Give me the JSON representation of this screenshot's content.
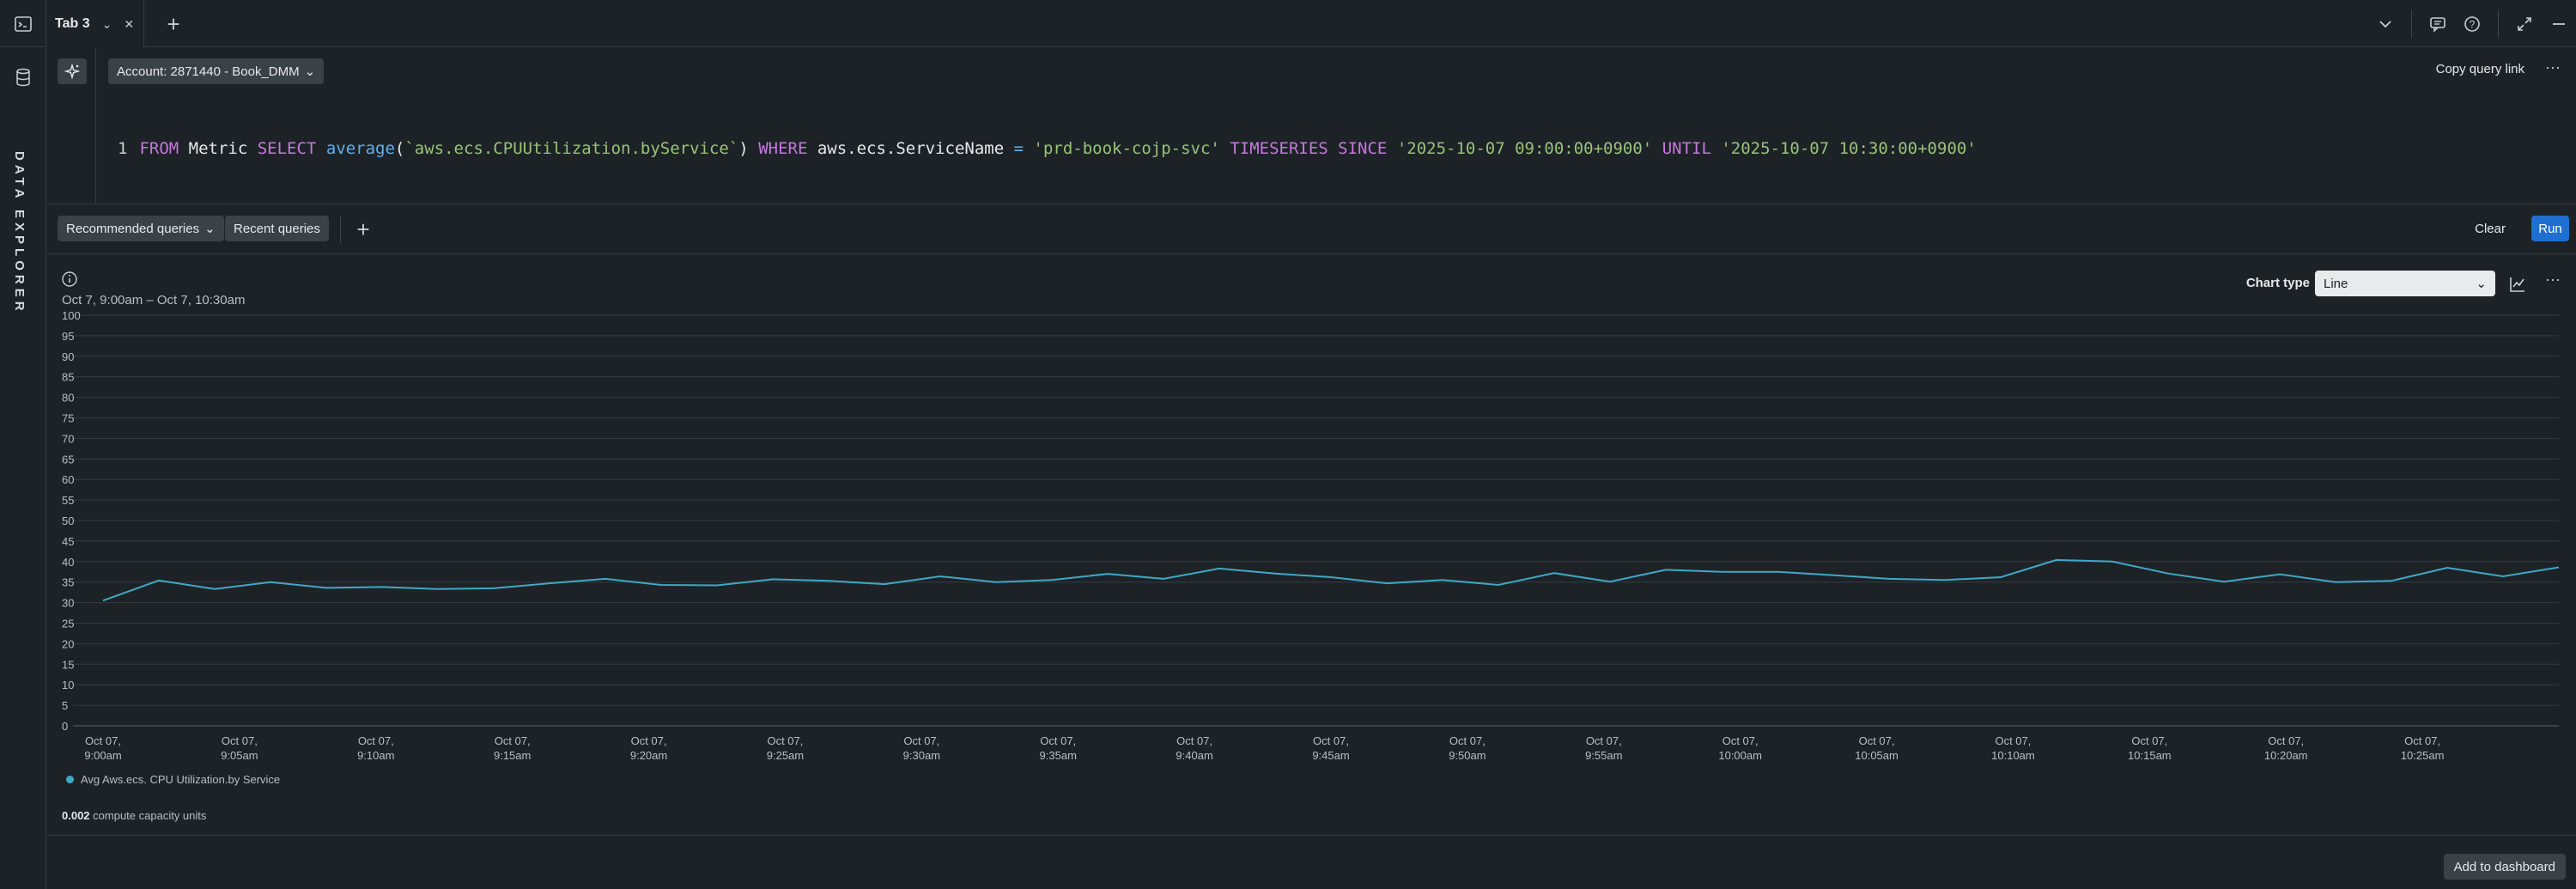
{
  "tabs": [
    {
      "label": "Tab 3"
    }
  ],
  "rail": {
    "label": "DATA EXPLORER"
  },
  "editor": {
    "account": "Account: 2871440 - Book_DMM",
    "copy_link": "Copy query link",
    "line_number": "1",
    "query_tokens": [
      {
        "t": "FROM",
        "c": "kw"
      },
      {
        "t": " Metric ",
        "c": ""
      },
      {
        "t": "SELECT",
        "c": "kw"
      },
      {
        "t": " ",
        "c": ""
      },
      {
        "t": "average",
        "c": "fn"
      },
      {
        "t": "(",
        "c": ""
      },
      {
        "t": "`aws.ecs.CPUUtilization.byService`",
        "c": "str"
      },
      {
        "t": ") ",
        "c": ""
      },
      {
        "t": "WHERE",
        "c": "kw"
      },
      {
        "t": " aws.ecs.ServiceName ",
        "c": ""
      },
      {
        "t": "=",
        "c": "fn"
      },
      {
        "t": " ",
        "c": ""
      },
      {
        "t": "'prd-book-cojp-svc'",
        "c": "str"
      },
      {
        "t": " ",
        "c": ""
      },
      {
        "t": "TIMESERIES",
        "c": "kw"
      },
      {
        "t": " ",
        "c": ""
      },
      {
        "t": "SINCE",
        "c": "kw"
      },
      {
        "t": " ",
        "c": ""
      },
      {
        "t": "'2025-10-07 09:00:00+0900'",
        "c": "str"
      },
      {
        "t": " ",
        "c": ""
      },
      {
        "t": "UNTIL",
        "c": "kw"
      },
      {
        "t": " ",
        "c": ""
      },
      {
        "t": "'2025-10-07 10:30:00+0900'",
        "c": "str"
      }
    ]
  },
  "toolbar": {
    "recommended": "Recommended queries",
    "recent": "Recent queries",
    "clear": "Clear",
    "run": "Run"
  },
  "chart_panel": {
    "range": "Oct 7, 9:00am – Oct 7, 10:30am",
    "chart_type_label": "Chart type",
    "chart_type_value": "Line",
    "ccu_value": "0.002",
    "ccu_label": " compute capacity units"
  },
  "footer": {
    "add_to_dashboard": "Add to dashboard"
  },
  "colors": {
    "series": "#3fa9c5",
    "run": "#1f6fd1"
  },
  "chart_data": {
    "type": "line",
    "ylim": [
      0,
      100
    ],
    "yticks": [
      0,
      5,
      10,
      15,
      20,
      25,
      30,
      35,
      40,
      45,
      50,
      55,
      60,
      65,
      70,
      75,
      80,
      85,
      90,
      95,
      100
    ],
    "xticks": [
      [
        "Oct 07,",
        "9:00am"
      ],
      [
        "Oct 07,",
        "9:05am"
      ],
      [
        "Oct 07,",
        "9:10am"
      ],
      [
        "Oct 07,",
        "9:15am"
      ],
      [
        "Oct 07,",
        "9:20am"
      ],
      [
        "Oct 07,",
        "9:25am"
      ],
      [
        "Oct 07,",
        "9:30am"
      ],
      [
        "Oct 07,",
        "9:35am"
      ],
      [
        "Oct 07,",
        "9:40am"
      ],
      [
        "Oct 07,",
        "9:45am"
      ],
      [
        "Oct 07,",
        "9:50am"
      ],
      [
        "Oct 07,",
        "9:55am"
      ],
      [
        "Oct 07,",
        "10:00am"
      ],
      [
        "Oct 07,",
        "10:05am"
      ],
      [
        "Oct 07,",
        "10:10am"
      ],
      [
        "Oct 07,",
        "10:15am"
      ],
      [
        "Oct 07,",
        "10:20am"
      ],
      [
        "Oct 07,",
        "10:25am"
      ]
    ],
    "x_start": "9:00am",
    "x_end": "10:30am",
    "grid": true,
    "series": [
      {
        "name": "Avg Aws.ecs. CPU Utilization.by Service",
        "values": [
          30.5,
          35.4,
          33.3,
          35.0,
          33.6,
          33.8,
          33.3,
          33.5,
          34.7,
          35.8,
          34.3,
          34.2,
          35.7,
          35.3,
          34.5,
          36.4,
          35.0,
          35.5,
          37.0,
          35.8,
          38.3,
          37.1,
          36.2,
          34.7,
          35.5,
          34.3,
          37.2,
          35.1,
          38.0,
          37.5,
          37.5,
          36.7,
          35.8,
          35.5,
          36.2,
          40.4,
          40.0,
          37.1,
          35.1,
          36.9,
          35.0,
          35.3,
          38.5,
          36.4,
          38.6
        ]
      }
    ]
  }
}
